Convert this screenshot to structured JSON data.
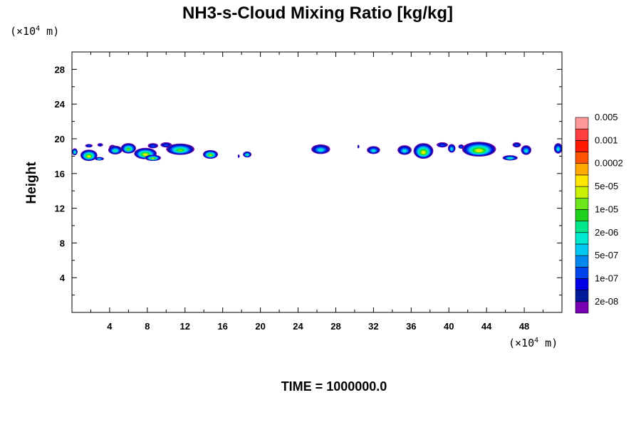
{
  "chart_data": {
    "type": "heatmap",
    "title": "NH3-s-Cloud Mixing Ratio [kg/kg]",
    "ylabel": "Height",
    "x_unit": {
      "base": "(×10",
      "exp": "4",
      "suffix": " m)"
    },
    "y_unit": {
      "base": "(×10",
      "exp": "4",
      "suffix": " m)"
    },
    "xlim": [
      0,
      52
    ],
    "ylim": [
      0,
      30
    ],
    "x_ticks": [
      4,
      8,
      12,
      16,
      20,
      24,
      28,
      32,
      36,
      40,
      44,
      48
    ],
    "y_ticks": [
      4,
      8,
      12,
      16,
      20,
      24,
      28
    ],
    "colorbar": {
      "colors": [
        "#7700b3",
        "#001a99",
        "#0000e6",
        "#0044ee",
        "#0088ee",
        "#00c8f0",
        "#00e8d0",
        "#00e68a",
        "#1ed21e",
        "#6ee61e",
        "#c8f000",
        "#ffe600",
        "#ffaa00",
        "#ff5500",
        "#ff1a00",
        "#ff4040",
        "#ff9999"
      ],
      "labels": [
        "2e-08",
        "1e-07",
        "5e-07",
        "2e-06",
        "1e-05",
        "5e-05",
        "0.0002",
        "0.001",
        "0.005"
      ]
    },
    "clouds": [
      {
        "x": 0.3,
        "y": 18.5,
        "w": 0.6,
        "h": 0.8,
        "level": 7
      },
      {
        "x": 1.8,
        "y": 18.1,
        "w": 1.8,
        "h": 1.3,
        "level": 11
      },
      {
        "x": 1.8,
        "y": 19.2,
        "w": 0.8,
        "h": 0.4,
        "level": 3
      },
      {
        "x": 2.9,
        "y": 17.7,
        "w": 1.0,
        "h": 0.4,
        "level": 6
      },
      {
        "x": 3.0,
        "y": 19.3,
        "w": 0.6,
        "h": 0.4,
        "level": 2
      },
      {
        "x": 4.3,
        "y": 19.0,
        "w": 0.7,
        "h": 0.6,
        "level": 3
      },
      {
        "x": 4.6,
        "y": 18.7,
        "w": 1.5,
        "h": 1.0,
        "level": 7
      },
      {
        "x": 6.0,
        "y": 18.9,
        "w": 1.6,
        "h": 1.2,
        "level": 9
      },
      {
        "x": 7.8,
        "y": 18.3,
        "w": 2.4,
        "h": 1.3,
        "level": 11
      },
      {
        "x": 8.6,
        "y": 17.8,
        "w": 1.7,
        "h": 0.7,
        "level": 10
      },
      {
        "x": 8.6,
        "y": 19.2,
        "w": 1.1,
        "h": 0.6,
        "level": 3
      },
      {
        "x": 10.0,
        "y": 19.3,
        "w": 1.2,
        "h": 0.6,
        "level": 3
      },
      {
        "x": 11.5,
        "y": 18.8,
        "w": 3.0,
        "h": 1.3,
        "level": 9
      },
      {
        "x": 14.7,
        "y": 18.2,
        "w": 1.6,
        "h": 1.0,
        "level": 10
      },
      {
        "x": 17.7,
        "y": 18.0,
        "w": 0.2,
        "h": 0.4,
        "level": 2
      },
      {
        "x": 18.6,
        "y": 18.2,
        "w": 0.9,
        "h": 0.7,
        "level": 7
      },
      {
        "x": 26.4,
        "y": 18.8,
        "w": 2.0,
        "h": 1.1,
        "level": 6
      },
      {
        "x": 30.4,
        "y": 19.1,
        "w": 0.2,
        "h": 0.4,
        "level": 2
      },
      {
        "x": 32.0,
        "y": 18.7,
        "w": 1.4,
        "h": 0.9,
        "level": 6
      },
      {
        "x": 35.3,
        "y": 18.7,
        "w": 1.5,
        "h": 1.1,
        "level": 6
      },
      {
        "x": 37.3,
        "y": 18.6,
        "w": 2.1,
        "h": 1.8,
        "level": 11
      },
      {
        "x": 39.3,
        "y": 19.3,
        "w": 1.2,
        "h": 0.6,
        "level": 3
      },
      {
        "x": 40.3,
        "y": 18.9,
        "w": 0.8,
        "h": 1.0,
        "level": 6
      },
      {
        "x": 41.3,
        "y": 19.1,
        "w": 0.6,
        "h": 0.5,
        "level": 3
      },
      {
        "x": 43.2,
        "y": 18.8,
        "w": 3.6,
        "h": 1.7,
        "level": 11
      },
      {
        "x": 46.5,
        "y": 17.8,
        "w": 1.6,
        "h": 0.6,
        "level": 7
      },
      {
        "x": 47.2,
        "y": 19.3,
        "w": 0.9,
        "h": 0.6,
        "level": 3
      },
      {
        "x": 48.2,
        "y": 18.7,
        "w": 1.1,
        "h": 1.1,
        "level": 6
      },
      {
        "x": 51.6,
        "y": 18.9,
        "w": 0.9,
        "h": 1.2,
        "level": 6
      }
    ]
  },
  "footer": {
    "time_text": "TIME = 1000000.0"
  }
}
